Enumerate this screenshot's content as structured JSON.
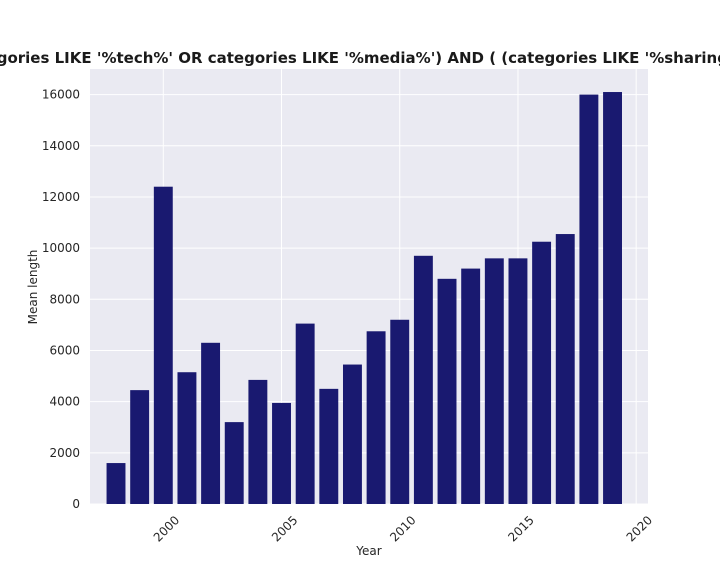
{
  "chart_data": {
    "type": "bar",
    "title": "( (categories LIKE '%tech%' OR categories LIKE '%media%') AND  ( (categories LIKE '%sharing%') ) )",
    "xlabel": "Year",
    "ylabel": "Mean length",
    "x": [
      1998,
      1999,
      2000,
      2001,
      2002,
      2003,
      2004,
      2005,
      2006,
      2007,
      2008,
      2009,
      2010,
      2011,
      2012,
      2013,
      2014,
      2015,
      2016,
      2017,
      2018,
      2019
    ],
    "values": [
      1600,
      4450,
      12400,
      5150,
      6300,
      3200,
      4850,
      3950,
      7050,
      4500,
      5450,
      6750,
      7200,
      9700,
      8800,
      9200,
      9600,
      9600,
      10250,
      10550,
      16000,
      16100
    ],
    "xticks": [
      2000,
      2005,
      2010,
      2015,
      2020
    ],
    "xtick_labels": [
      "2000",
      "2005",
      "2010",
      "2015",
      "2020"
    ],
    "yticks": [
      0,
      2000,
      4000,
      6000,
      8000,
      10000,
      12000,
      14000,
      16000
    ],
    "ytick_labels": [
      "0",
      "2000",
      "4000",
      "6000",
      "8000",
      "10000",
      "12000",
      "14000",
      "16000"
    ],
    "xlim": [
      1996.9,
      2020.5
    ],
    "ylim": [
      0,
      17000
    ],
    "bar_color": "#191970",
    "background_color": "#eaeaf2",
    "grid": true,
    "legend": false
  }
}
